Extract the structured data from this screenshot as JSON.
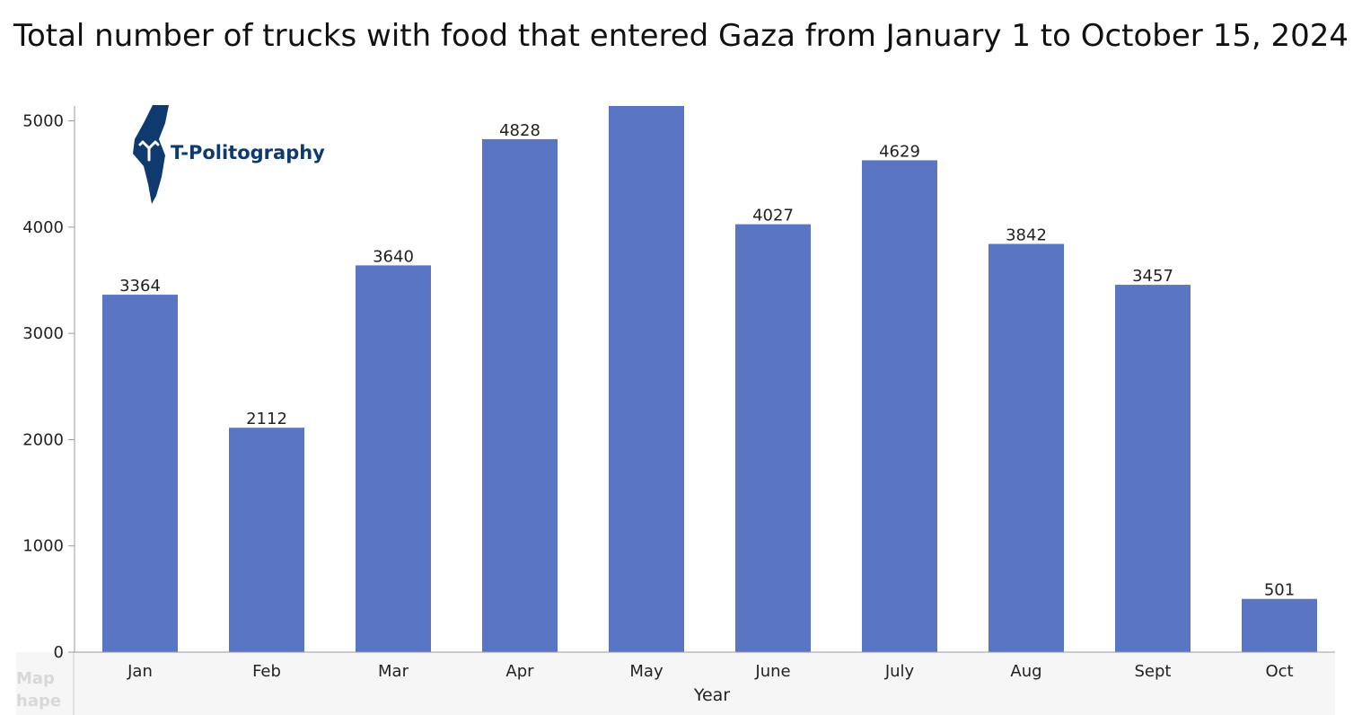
{
  "colors": {
    "bar": "#5975c4",
    "axis": "#9a9a9a",
    "panel": "#f6f6f6",
    "logo": "#0e3a70"
  },
  "watermark": {
    "text": "T-Politography",
    "lines": [
      "Map",
      "hape"
    ],
    "icon": "israel-map-icon"
  },
  "chart_data": {
    "type": "bar",
    "title": "Total number of trucks with food that entered Gaza from January 1 to October 15, 2024",
    "xlabel": "Year",
    "ylabel": "",
    "categories": [
      "Jan",
      "Feb",
      "Mar",
      "Apr",
      "May",
      "June",
      "July",
      "Aug",
      "Sept",
      "Oct"
    ],
    "values": [
      3364,
      2112,
      3640,
      4828,
      5140,
      4027,
      4629,
      3842,
      3457,
      501
    ],
    "data_labels": [
      "3364",
      "2112",
      "3640",
      "4828",
      "",
      "4027",
      "4629",
      "3842",
      "3457",
      "501"
    ],
    "yticks": [
      "0",
      "1000",
      "2000",
      "3000",
      "4000",
      "5000"
    ],
    "ylim": [
      0,
      5140
    ],
    "grid": false,
    "legend": "none"
  }
}
